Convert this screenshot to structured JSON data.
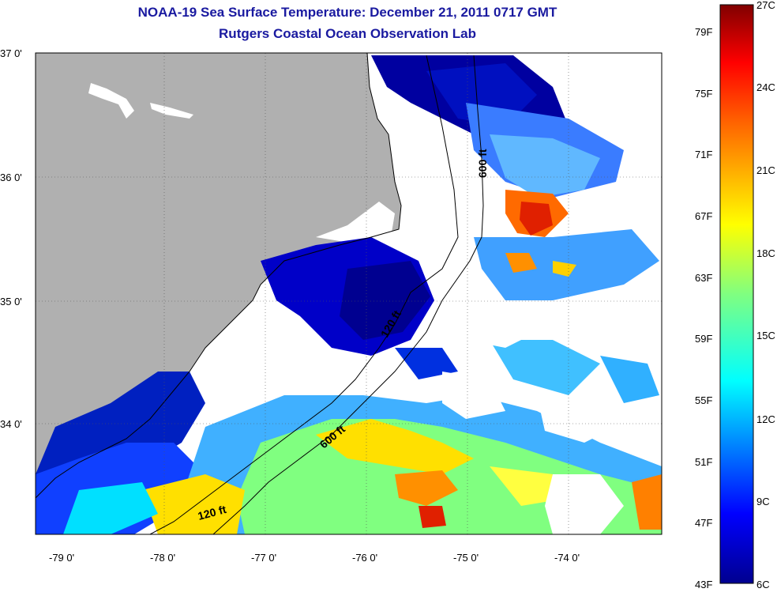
{
  "title": "NOAA-19 Sea Surface Temperature:  December 21, 2011 0717 GMT",
  "subtitle": "Rutgers Coastal Ocean Observation Lab",
  "map": {
    "lat_labels": [
      "37 0'",
      "36 0'",
      "35 0'",
      "34 0'"
    ],
    "lon_labels": [
      "-79 0'",
      "-78 0'",
      "-77 0'",
      "-76 0'",
      "-75 0'",
      "-74 0'"
    ],
    "isobath_labels": [
      "600 ft",
      "120 ft",
      "600 ft",
      "120 ft"
    ],
    "colors": {
      "land": "#b0b0b0",
      "water_nodata": "#ffffff",
      "coast": "#000000"
    }
  },
  "colorbar": {
    "celsius_labels": [
      "27C",
      "24C",
      "21C",
      "18C",
      "15C",
      "12C",
      "9C",
      "6C"
    ],
    "fahrenheit_labels": [
      "79F",
      "75F",
      "71F",
      "67F",
      "63F",
      "59F",
      "55F",
      "51F",
      "47F",
      "43F"
    ],
    "scale": [
      "#00008f",
      "#0000ff",
      "#0080ff",
      "#00ffff",
      "#80ff80",
      "#ffff00",
      "#ff8000",
      "#ff0000",
      "#800000"
    ]
  }
}
